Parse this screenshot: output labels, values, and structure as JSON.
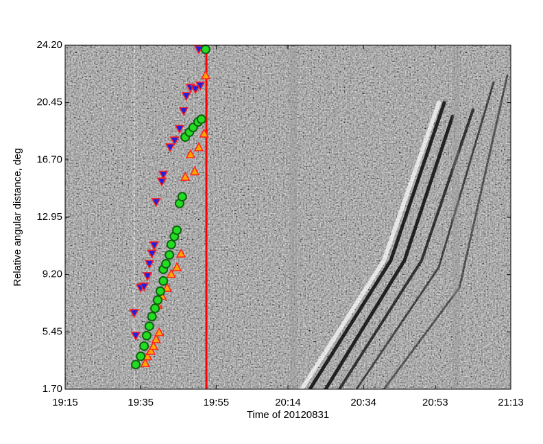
{
  "chart_data": {
    "type": "scatter",
    "xlabel": "Time of 20120831",
    "ylabel": "Relative angular distance, deg",
    "xlim": [
      1155,
      1273
    ],
    "xticks": [
      {
        "value": 1155,
        "label": "19:15"
      },
      {
        "value": 1175,
        "label": "19:35"
      },
      {
        "value": 1195,
        "label": "19:55"
      },
      {
        "value": 1214,
        "label": "20:14"
      },
      {
        "value": 1234,
        "label": "20:34"
      },
      {
        "value": 1253,
        "label": "20:53"
      },
      {
        "value": 1273,
        "label": "21:13"
      }
    ],
    "ylim": [
      1.7,
      24.2
    ],
    "yticks": [
      {
        "value": 1.7,
        "label": "1.70"
      },
      {
        "value": 5.45,
        "label": "5.45"
      },
      {
        "value": 9.2,
        "label": "9.20"
      },
      {
        "value": 12.95,
        "label": "12.95"
      },
      {
        "value": 16.7,
        "label": "16.70"
      },
      {
        "value": 20.45,
        "label": "20.45"
      },
      {
        "value": 24.2,
        "label": "24.20"
      }
    ],
    "vlines": [
      {
        "x": 1173.3,
        "color": "#ffffff",
        "dashed": true
      },
      {
        "x": 1192.4,
        "color": "#ff0000",
        "dashed": false
      }
    ],
    "series": [
      {
        "marker": "triangle-down",
        "color": "#2020e0",
        "edge": "#ff2020",
        "x": [
          1173.3,
          1173.7,
          1175.0,
          1175.9,
          1176.8,
          1177.3,
          1178.0,
          1178.6,
          1179.1,
          1180.6,
          1181.0,
          1182.8,
          1184.0,
          1185.3,
          1186.4,
          1187.1,
          1188.2,
          1189.5,
          1190.8,
          1190.4
        ],
        "values": [
          6.68,
          5.2,
          8.33,
          8.42,
          9.1,
          9.9,
          10.57,
          11.11,
          13.94,
          15.28,
          15.73,
          17.52,
          17.97,
          18.73,
          19.9,
          20.88,
          21.42,
          21.33,
          21.56,
          23.93
        ]
      },
      {
        "marker": "triangle-up",
        "color": "#ffa500",
        "edge": "#ff2020",
        "x": [
          1176.2,
          1176.8,
          1177.7,
          1178.4,
          1179.1,
          1179.9,
          1179.5,
          1180.6,
          1182.0,
          1183.1,
          1184.6,
          1185.7,
          1186.8,
          1188.2,
          1189.3,
          1190.4,
          1191.8,
          1192.2
        ],
        "values": [
          3.4,
          3.85,
          4.21,
          4.52,
          4.97,
          5.42,
          7.21,
          7.8,
          8.33,
          9.23,
          9.68,
          10.57,
          15.59,
          17.07,
          15.95,
          17.52,
          18.42,
          22.23
        ]
      },
      {
        "marker": "circle",
        "color": "#22dd22",
        "edge": "#106010",
        "x": [
          1173.7,
          1175.0,
          1175.9,
          1176.6,
          1177.3,
          1178.0,
          1178.8,
          1179.5,
          1180.2,
          1181.0,
          1181.0,
          1181.7,
          1182.6,
          1183.1,
          1183.9,
          1184.6,
          1185.3,
          1186.0,
          1186.8,
          1187.9,
          1188.9,
          1190.2,
          1191.1,
          1192.2
        ],
        "values": [
          3.31,
          3.85,
          4.52,
          5.2,
          5.82,
          6.45,
          6.99,
          7.53,
          8.11,
          8.78,
          9.54,
          9.9,
          10.48,
          11.16,
          11.69,
          12.1,
          13.85,
          14.29,
          18.19,
          18.51,
          18.82,
          19.18,
          19.36,
          23.93
        ]
      }
    ]
  }
}
